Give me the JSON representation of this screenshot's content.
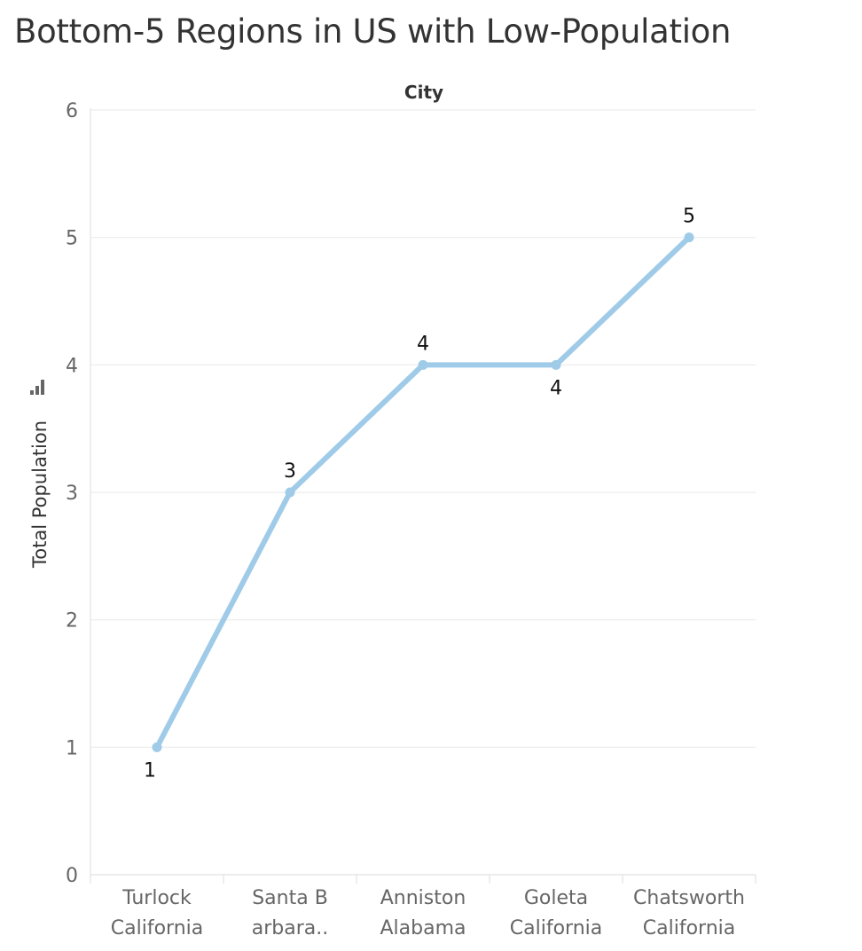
{
  "chart_data": {
    "type": "line",
    "title": "Bottom-5 Regions in US with Low-Population",
    "column_header": "City",
    "ylabel": "Total Population",
    "ylabel_icon": "bar-chart-icon",
    "categories": [
      [
        "Turlock",
        "California"
      ],
      [
        "Santa B",
        "arbara.."
      ],
      [
        "Anniston",
        "Alabama"
      ],
      [
        "Goleta",
        "California"
      ],
      [
        "Chatsworth",
        "California"
      ]
    ],
    "values": [
      1,
      3,
      4,
      4,
      5
    ],
    "label_positions": [
      "below",
      "above",
      "above",
      "below",
      "above"
    ],
    "yticks": [
      0,
      1,
      2,
      3,
      4,
      5,
      6
    ],
    "ylim": [
      0,
      6
    ],
    "grid": true,
    "line_color": "#9fcbe8",
    "text_color": "#333333"
  }
}
